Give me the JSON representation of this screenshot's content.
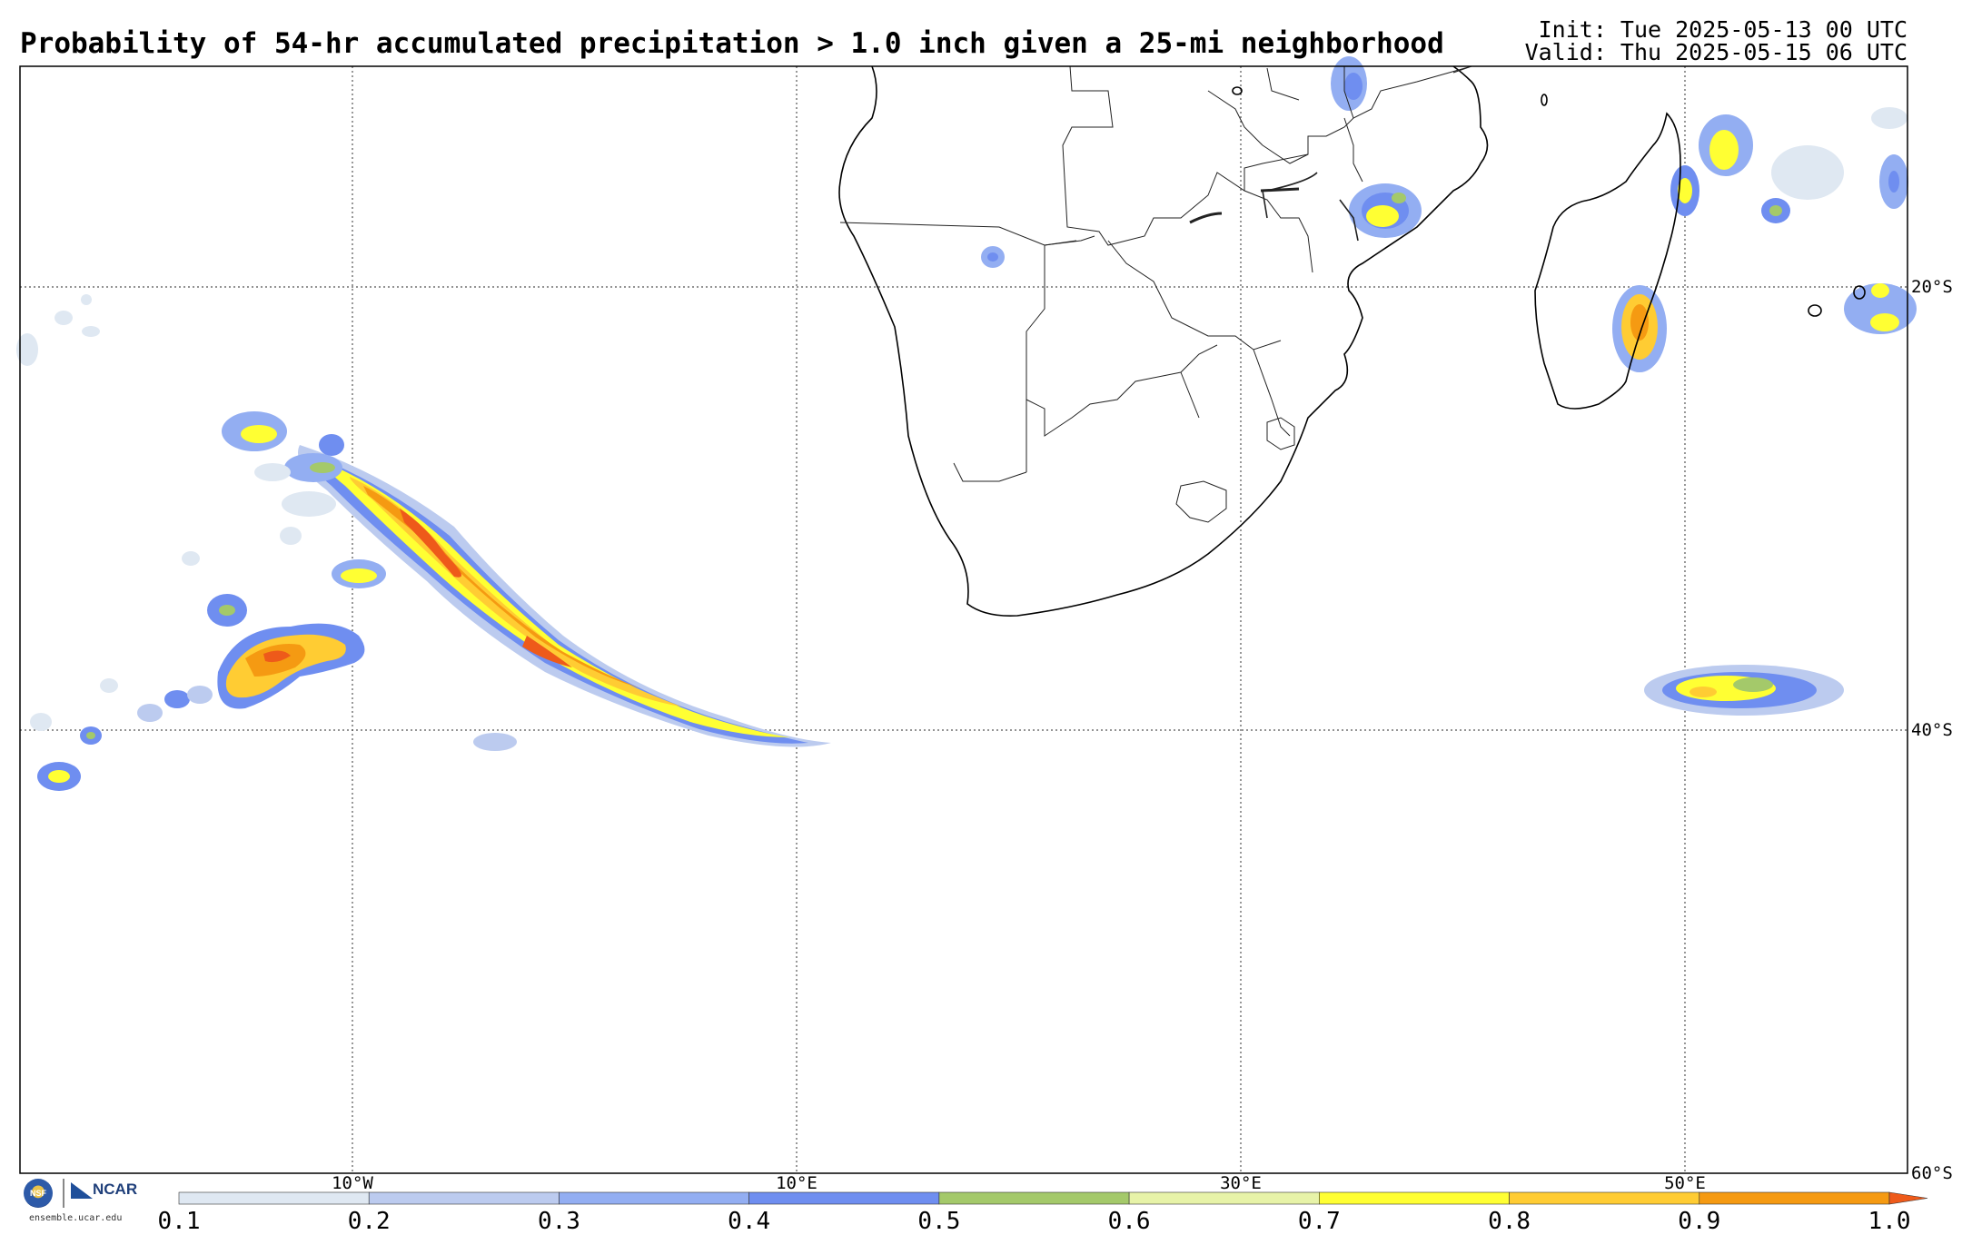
{
  "header": {
    "title": "Probability of 54-hr accumulated precipitation > 1.0 inch given a 25-mi neighborhood",
    "init": "Init: Tue 2025-05-13 00 UTC",
    "valid": "Valid: Thu 2025-05-15 06 UTC"
  },
  "map": {
    "region": "Southern Africa and South Atlantic / SW Indian Ocean",
    "lon_labels": [
      "10°W",
      "10°E",
      "30°E",
      "50°E"
    ],
    "lat_labels": [
      "20°S",
      "40°S",
      "60°S"
    ],
    "lon_range": [
      -25,
      60
    ],
    "lat_range": [
      -60,
      -10
    ]
  },
  "colorbar": {
    "ticks": [
      "0.1",
      "0.2",
      "0.3",
      "0.4",
      "0.5",
      "0.6",
      "0.7",
      "0.8",
      "0.9",
      "1.0"
    ],
    "colors": [
      "#dfe8f2",
      "#bccbef",
      "#93aef2",
      "#6f8ef0",
      "#a4c96a",
      "#e7f3a8",
      "#ffff33",
      "#ffcc33",
      "#f59a12"
    ],
    "extend_color": "#ee5a1a"
  },
  "logo": {
    "nsf": "NSF",
    "ncar": "NCAR",
    "url": "ensemble.ucar.edu"
  }
}
